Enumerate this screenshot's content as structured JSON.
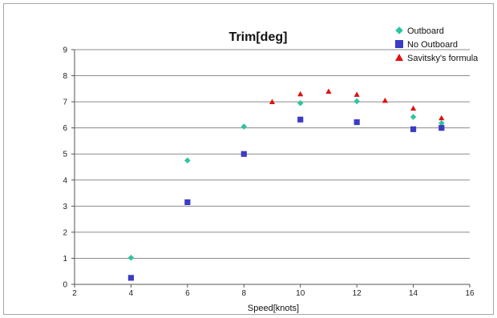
{
  "chart_data": {
    "type": "scatter",
    "title": "Trim[deg]",
    "xlabel": "Speed[knots]",
    "ylabel": "",
    "xlim": [
      2,
      16
    ],
    "ylim": [
      0,
      9
    ],
    "xticks": [
      2,
      4,
      6,
      8,
      10,
      12,
      14,
      16
    ],
    "yticks": [
      0,
      1,
      2,
      3,
      4,
      5,
      6,
      7,
      8,
      9
    ],
    "grid": "horizontal",
    "legend": "top-right",
    "series": [
      {
        "name": "Outboard",
        "marker": "diamond",
        "color": "#2ec4a0",
        "points": [
          [
            4,
            1.02
          ],
          [
            6,
            4.75
          ],
          [
            8,
            6.05
          ],
          [
            10,
            6.95
          ],
          [
            12,
            7.02
          ],
          [
            14,
            6.42
          ],
          [
            15,
            6.18
          ]
        ]
      },
      {
        "name": "No Outboard",
        "marker": "square",
        "color": "#3b3bc4",
        "points": [
          [
            4,
            0.25
          ],
          [
            6,
            3.15
          ],
          [
            8,
            5.0
          ],
          [
            10,
            6.32
          ],
          [
            12,
            6.22
          ],
          [
            14,
            5.95
          ],
          [
            15,
            6.0
          ]
        ]
      },
      {
        "name": "Savitsky's formula",
        "marker": "triangle",
        "color": "#e01010",
        "points": [
          [
            9,
            7.0
          ],
          [
            10,
            7.3
          ],
          [
            11,
            7.4
          ],
          [
            12,
            7.28
          ],
          [
            13,
            7.05
          ],
          [
            14,
            6.75
          ],
          [
            15,
            6.38
          ]
        ]
      }
    ]
  }
}
